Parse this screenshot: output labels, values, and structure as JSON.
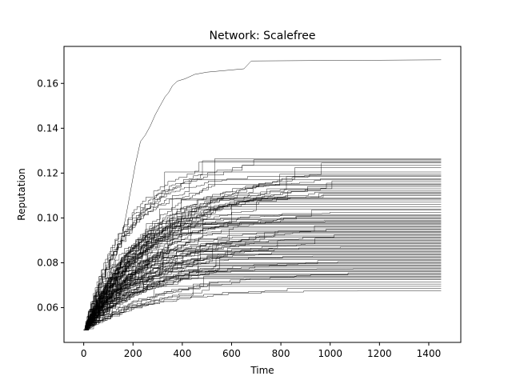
{
  "chart_data": {
    "type": "line",
    "title": "Network: Scalefree",
    "xlabel": "Time",
    "ylabel": "Reputation",
    "xlim": [
      -80,
      1530
    ],
    "ylim": [
      0.0445,
      0.1765
    ],
    "xticks": [
      0,
      200,
      400,
      600,
      800,
      1000,
      1200,
      1400
    ],
    "yticks": [
      0.06,
      0.08,
      0.1,
      0.12,
      0.14,
      0.16
    ],
    "xtick_labels": [
      "0",
      "200",
      "400",
      "600",
      "800",
      "1000",
      "1200",
      "1400"
    ],
    "ytick_labels": [
      "0.06",
      "0.08",
      "0.10",
      "0.12",
      "0.14",
      "0.16"
    ],
    "grid": false,
    "line_color": "#000000",
    "series_count": 100,
    "x_range": [
      0,
      1450
    ],
    "y_start": 0.05,
    "final_values": [
      0.1705,
      0.1265,
      0.126,
      0.1255,
      0.125,
      0.1245,
      0.1235,
      0.1225,
      0.1205,
      0.1195,
      0.119,
      0.1185,
      0.1175,
      0.117,
      0.1165,
      0.1155,
      0.115,
      0.1145,
      0.114,
      0.113,
      0.112,
      0.1115,
      0.111,
      0.1105,
      0.11,
      0.109,
      0.1085,
      0.108,
      0.107,
      0.106,
      0.105,
      0.104,
      0.1035,
      0.1025,
      0.1015,
      0.101,
      0.1005,
      0.1,
      0.0995,
      0.099,
      0.0985,
      0.098,
      0.0975,
      0.097,
      0.0965,
      0.096,
      0.0955,
      0.095,
      0.0945,
      0.094,
      0.0935,
      0.093,
      0.0925,
      0.092,
      0.0915,
      0.091,
      0.0905,
      0.09,
      0.0895,
      0.089,
      0.0885,
      0.088,
      0.0875,
      0.087,
      0.0865,
      0.086,
      0.0855,
      0.085,
      0.0845,
      0.084,
      0.0835,
      0.083,
      0.0825,
      0.082,
      0.0815,
      0.081,
      0.0805,
      0.08,
      0.0795,
      0.079,
      0.0785,
      0.078,
      0.0775,
      0.077,
      0.0765,
      0.076,
      0.0755,
      0.075,
      0.0745,
      0.074,
      0.0735,
      0.073,
      0.0725,
      0.0715,
      0.0705,
      0.0695,
      0.0685,
      0.0675,
      0.098,
      0.094
    ],
    "highlight_series": {
      "final": 0.1705,
      "points": [
        [
          0,
          0.05
        ],
        [
          40,
          0.058
        ],
        [
          80,
          0.067
        ],
        [
          120,
          0.079
        ],
        [
          150,
          0.09
        ],
        [
          170,
          0.1
        ],
        [
          190,
          0.112
        ],
        [
          210,
          0.124
        ],
        [
          230,
          0.134
        ],
        [
          250,
          0.137
        ],
        [
          270,
          0.141
        ],
        [
          290,
          0.146
        ],
        [
          310,
          0.15
        ],
        [
          330,
          0.154
        ],
        [
          345,
          0.156
        ],
        [
          360,
          0.159
        ],
        [
          380,
          0.161
        ],
        [
          410,
          0.162
        ],
        [
          450,
          0.164
        ],
        [
          500,
          0.165
        ],
        [
          600,
          0.166
        ],
        [
          650,
          0.1665
        ],
        [
          680,
          0.17
        ],
        [
          1450,
          0.1705
        ]
      ]
    }
  }
}
